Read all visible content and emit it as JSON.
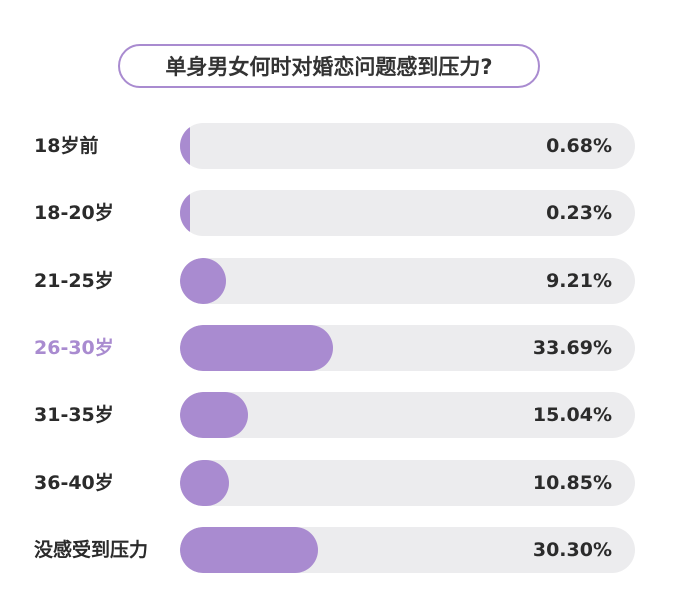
{
  "chart_data": {
    "type": "bar",
    "orientation": "horizontal",
    "title": "单身男女何时对婚恋问题感到压力?",
    "categories": [
      "18岁前",
      "18-20岁",
      "21-25岁",
      "26-30岁",
      "31-35岁",
      "36-40岁",
      "没感受到压力"
    ],
    "values": [
      0.68,
      0.23,
      9.21,
      33.69,
      15.04,
      10.85,
      30.3
    ],
    "value_labels": [
      "0.68%",
      "0.23%",
      "9.21%",
      "33.69%",
      "15.04%",
      "10.85%",
      "30.30%"
    ],
    "highlight_category": "26-30岁",
    "xlim": [
      0,
      100
    ],
    "grid": false,
    "colors": {
      "bar": "#a98bd0",
      "track": "#ececee",
      "highlight_text": "#a98bd0",
      "text": "#2b2b2b"
    }
  }
}
